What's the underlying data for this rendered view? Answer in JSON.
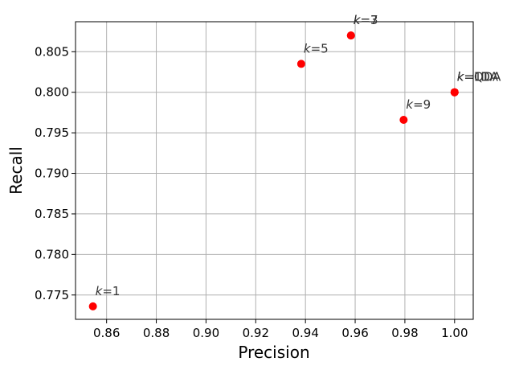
{
  "chart_data": {
    "type": "scatter",
    "xlabel": "Precision",
    "ylabel": "Recall",
    "xlim": [
      0.8475,
      1.0075
    ],
    "ylim": [
      0.772,
      0.8087
    ],
    "xticks": [
      0.86,
      0.88,
      0.9,
      0.92,
      0.94,
      0.96,
      0.98,
      1.0
    ],
    "xtick_labels": [
      "0.86",
      "0.88",
      "0.90",
      "0.92",
      "0.94",
      "0.96",
      "0.98",
      "1.00"
    ],
    "yticks": [
      0.775,
      0.78,
      0.785,
      0.79,
      0.795,
      0.8,
      0.805
    ],
    "ytick_labels": [
      "0.775",
      "0.780",
      "0.785",
      "0.790",
      "0.795",
      "0.800",
      "0.805"
    ],
    "grid": true,
    "marker_color": "#ff0000",
    "points": [
      {
        "k": "1",
        "x": 0.8545,
        "y": 0.7736
      },
      {
        "k": "3",
        "x": 0.9583,
        "y": 0.807
      },
      {
        "k": "7",
        "x": 0.9583,
        "y": 0.807
      },
      {
        "k": "5",
        "x": 0.9383,
        "y": 0.8035
      },
      {
        "k": "9",
        "x": 0.9795,
        "y": 0.7966
      },
      {
        "k": "11",
        "x": 1.0,
        "y": 0.8
      },
      {
        "k": "LDA",
        "x": 1.0,
        "y": 0.8
      },
      {
        "k": "QDA",
        "x": 1.0,
        "y": 0.8
      }
    ]
  }
}
